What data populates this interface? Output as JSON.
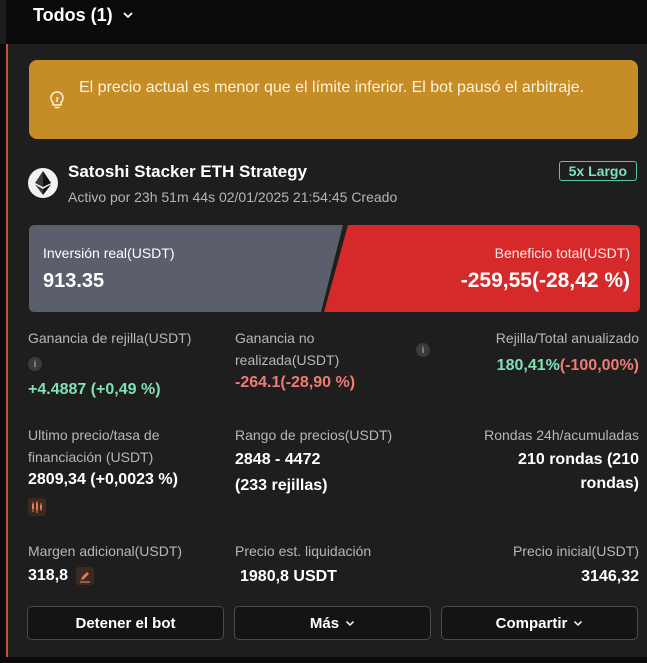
{
  "header": {
    "filter_label": "Todos (1)"
  },
  "alert": {
    "text": "El precio actual es menor que el límite inferior. El bot pausó el arbitraje."
  },
  "strategy": {
    "name": "Satoshi Stacker ETH Strategy",
    "subtitle": "Activo por 23h 51m 44s 02/01/2025 21:54:45 Creado",
    "badge": "5x Largo"
  },
  "investment": {
    "label": "Inversión real(USDT)",
    "value": "913.35"
  },
  "profit": {
    "label": "Beneficio total(USDT)",
    "value": "-259,55(-28,42 %)"
  },
  "metrics": {
    "grid_profit": {
      "label": "Ganancia de rejilla(USDT)",
      "value": "+4.4887 (+0,49 %)",
      "info": "i"
    },
    "unrealized": {
      "label_line1": "Ganancia no",
      "label_line2": "realizada(USDT)",
      "value": "-264.1(-28,90 %)",
      "info": "i"
    },
    "annualized": {
      "label": "Rejilla/Total anualizado",
      "value_green": "180,41%",
      "value_red": "(-100,00%)"
    },
    "last_price": {
      "label_line1": "Ultimo precio/tasa de",
      "label_line2": "financiación (USDT)",
      "value": "2809,34 (+0,0023 %)"
    },
    "price_range": {
      "label": "Rango de precios(USDT)",
      "value_line1": "2848 - 4472",
      "value_line2": "(233 rejillas)"
    },
    "rounds": {
      "label": "Rondas 24h/acumuladas",
      "value_line1": "210 rondas (210",
      "value_line2": "rondas)"
    },
    "extra_margin": {
      "label": "Margen adicional(USDT)",
      "value": "318,8"
    },
    "liquidation": {
      "label": "Precio est. liquidación",
      "value": "1980,8 USDT"
    },
    "initial_price": {
      "label": "Precio inicial(USDT)",
      "value": "3146,32"
    }
  },
  "buttons": {
    "stop": "Detener el bot",
    "more": "Más",
    "share": "Compartir"
  },
  "colors": {
    "alert": "#c68c25",
    "profit_card": "#d62a2a",
    "investment_card": "#5b5f6b",
    "positive": "#7fe1b5",
    "negative": "#ef7b74"
  }
}
